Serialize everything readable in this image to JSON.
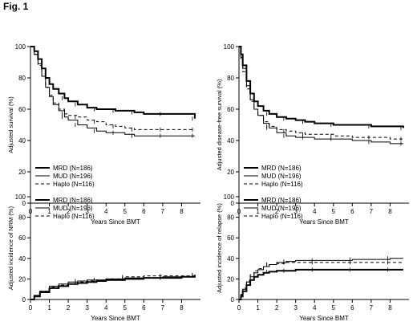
{
  "figure_title": "Fig. 1",
  "chart_data": [
    {
      "type": "line",
      "title": "",
      "xlabel": "Years Since BMT",
      "ylabel": "Adjusted survival (%)",
      "xlim": [
        0,
        9
      ],
      "ylim": [
        0,
        100
      ],
      "xticks": [
        0,
        1,
        2,
        3,
        4,
        5,
        6,
        7,
        8
      ],
      "yticks": [
        0,
        20,
        40,
        60,
        80,
        100
      ],
      "legend_position": "bottom-left",
      "series": [
        {
          "name": "MRD (N=186)",
          "style": "solid-thick",
          "x": [
            0,
            0.2,
            0.4,
            0.6,
            0.8,
            1,
            1.2,
            1.5,
            1.8,
            2,
            2.5,
            3,
            3.5,
            4,
            4.5,
            5,
            5.5,
            6,
            7,
            8,
            8.7
          ],
          "y": [
            100,
            97,
            92,
            86,
            80,
            76,
            73,
            70,
            67,
            65,
            63,
            61,
            60,
            60,
            59,
            59,
            58,
            57,
            57,
            57,
            54
          ]
        },
        {
          "name": "MUD (N=196)",
          "style": "solid-thin",
          "x": [
            0,
            0.2,
            0.4,
            0.6,
            0.8,
            1,
            1.2,
            1.5,
            1.8,
            2,
            2.5,
            3,
            3.5,
            4,
            4.5,
            5,
            5.5,
            6,
            7,
            8,
            8.7
          ],
          "y": [
            100,
            95,
            89,
            81,
            74,
            68,
            63,
            59,
            55,
            53,
            50,
            48,
            46,
            45,
            45,
            44,
            43,
            43,
            43,
            43,
            43
          ]
        },
        {
          "name": "Haplo (N=116)",
          "style": "dashed",
          "x": [
            0,
            0.2,
            0.4,
            0.6,
            0.8,
            1,
            1.2,
            1.5,
            1.8,
            2,
            2.5,
            3,
            3.5,
            4,
            4.5,
            5,
            5.5,
            6,
            7,
            8,
            8.7
          ],
          "y": [
            100,
            95,
            88,
            81,
            74,
            69,
            64,
            60,
            57,
            56,
            55,
            53,
            52,
            50,
            49,
            48,
            47,
            47,
            47,
            47,
            47
          ]
        }
      ]
    },
    {
      "type": "line",
      "title": "",
      "xlabel": "Years Since BMT",
      "ylabel": "Adjusted disease-free survival (%)",
      "xlim": [
        0,
        9
      ],
      "ylim": [
        0,
        100
      ],
      "xticks": [
        0,
        1,
        2,
        3,
        4,
        5,
        6,
        7,
        8
      ],
      "yticks": [
        0,
        20,
        40,
        60,
        80,
        100
      ],
      "legend_position": "bottom-left",
      "series": [
        {
          "name": "MRD (N=186)",
          "style": "solid-thick",
          "x": [
            0,
            0.1,
            0.2,
            0.4,
            0.6,
            0.8,
            1,
            1.3,
            1.6,
            2,
            2.5,
            3,
            3.5,
            4,
            5,
            6,
            7,
            8,
            8.7
          ],
          "y": [
            100,
            95,
            88,
            78,
            70,
            65,
            62,
            59,
            57,
            55,
            54,
            53,
            52,
            51,
            50,
            50,
            49,
            49,
            48
          ]
        },
        {
          "name": "MUD (N=196)",
          "style": "solid-thin",
          "x": [
            0,
            0.1,
            0.2,
            0.4,
            0.6,
            0.8,
            1,
            1.3,
            1.6,
            2,
            2.5,
            3,
            3.5,
            4,
            5,
            6,
            7,
            8,
            8.7
          ],
          "y": [
            100,
            93,
            86,
            75,
            66,
            60,
            56,
            51,
            48,
            45,
            43,
            42,
            42,
            41,
            41,
            40,
            39,
            38,
            38
          ]
        },
        {
          "name": "Haplo (N=116)",
          "style": "dashed",
          "x": [
            0,
            0.1,
            0.2,
            0.4,
            0.6,
            0.8,
            1,
            1.3,
            1.6,
            2,
            2.5,
            3,
            3.5,
            4,
            5,
            6,
            7,
            8,
            8.7
          ],
          "y": [
            100,
            92,
            84,
            73,
            65,
            60,
            56,
            52,
            49,
            47,
            46,
            45,
            44,
            44,
            43,
            42,
            42,
            41,
            41
          ]
        }
      ]
    },
    {
      "type": "line",
      "title": "",
      "xlabel": "Years Since BMT",
      "ylabel": "Adjusted incidence of NRM (%)",
      "xlim": [
        0,
        9
      ],
      "ylim": [
        0,
        100
      ],
      "xticks": [
        0,
        1,
        2,
        3,
        4,
        5,
        6,
        7,
        8
      ],
      "yticks": [
        0,
        20,
        40,
        60,
        80,
        100
      ],
      "legend_position": "top-right",
      "series": [
        {
          "name": "MRD (N=186)",
          "style": "solid-thick",
          "x": [
            0,
            0.2,
            0.5,
            1,
            1.5,
            2,
            2.5,
            3,
            3.5,
            4,
            5,
            6,
            7,
            8,
            8.7
          ],
          "y": [
            0,
            3,
            7,
            11,
            13,
            15,
            16,
            17,
            18,
            19,
            20,
            21,
            21,
            22,
            24
          ]
        },
        {
          "name": "MUD (N=196)",
          "style": "solid-thin",
          "x": [
            0,
            0.2,
            0.5,
            1,
            1.5,
            2,
            2.5,
            3,
            3.5,
            4,
            5,
            6,
            7,
            8,
            8.7
          ],
          "y": [
            0,
            4,
            8,
            13,
            15,
            17,
            18,
            19,
            19,
            20,
            21,
            21,
            22,
            22,
            23
          ]
        },
        {
          "name": "Haplo (N=116)",
          "style": "dashed",
          "x": [
            0,
            0.2,
            0.5,
            1,
            1.5,
            2,
            2.5,
            3,
            3.5,
            4,
            5,
            6,
            7,
            8,
            8.7
          ],
          "y": [
            0,
            4,
            8,
            12,
            14,
            15,
            17,
            18,
            19,
            20,
            22,
            23,
            23,
            23,
            23
          ]
        }
      ]
    },
    {
      "type": "line",
      "title": "",
      "xlabel": "Years Since BMT",
      "ylabel": "Adjusted incidence of relapse (%)",
      "xlim": [
        0,
        9
      ],
      "ylim": [
        0,
        100
      ],
      "xticks": [
        0,
        1,
        2,
        3,
        4,
        5,
        6,
        7,
        8
      ],
      "yticks": [
        0,
        20,
        40,
        60,
        80,
        100
      ],
      "legend_position": "top-right",
      "series": [
        {
          "name": "MRD (N=186)",
          "style": "solid-thick",
          "x": [
            0,
            0.1,
            0.2,
            0.4,
            0.6,
            0.8,
            1,
            1.3,
            1.6,
            2,
            2.5,
            3,
            4,
            5,
            6,
            7,
            8,
            8.7
          ],
          "y": [
            0,
            3,
            8,
            14,
            19,
            22,
            24,
            26,
            27,
            28,
            28,
            29,
            29,
            29,
            29,
            29,
            29,
            29
          ]
        },
        {
          "name": "MUD (N=196)",
          "style": "solid-thin",
          "x": [
            0,
            0.1,
            0.2,
            0.4,
            0.6,
            0.8,
            1,
            1.3,
            1.6,
            2,
            2.5,
            3,
            4,
            5,
            6,
            7,
            8,
            8.7
          ],
          "y": [
            0,
            4,
            10,
            17,
            22,
            26,
            29,
            32,
            34,
            36,
            37,
            38,
            38,
            38,
            39,
            39,
            40,
            40
          ]
        },
        {
          "name": "Haplo (N=116)",
          "style": "dashed",
          "x": [
            0,
            0.1,
            0.2,
            0.4,
            0.6,
            0.8,
            1,
            1.3,
            1.6,
            2,
            2.5,
            3,
            4,
            5,
            6,
            7,
            8,
            8.7
          ],
          "y": [
            0,
            5,
            11,
            18,
            24,
            28,
            30,
            32,
            34,
            35,
            36,
            36,
            36,
            36,
            36,
            36,
            36,
            36
          ]
        }
      ]
    }
  ]
}
